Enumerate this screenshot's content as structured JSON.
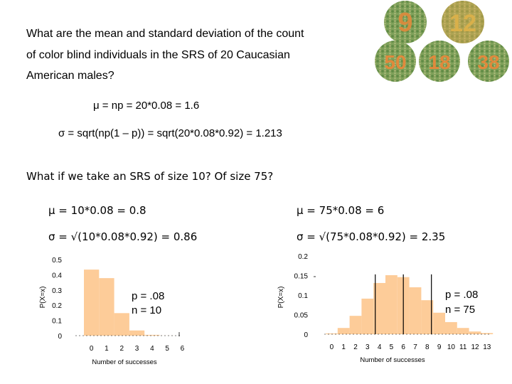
{
  "question": {
    "line1": "What are the mean and standard deviation of the count",
    "line2": "of color blind individuals in the SRS of 20 Caucasian",
    "line3": "American males?"
  },
  "formulas": {
    "mean": "μ = np = 20*0.08 = 1.6",
    "sd": "σ = sqrt(np(1 – p)) = sqrt(20*0.08*0.92) = 1.213"
  },
  "followup": "What if we take an SRS of size 10? Of size 75?",
  "n10": {
    "mean": "μ = 10*0.08 = 0.8",
    "sd": "σ = √(10*0.08*0.92) = 0.86"
  },
  "n75": {
    "mean": "μ = 75*0.08 = 6",
    "sd": "σ = √(75*0.08*0.92) = 2.35"
  },
  "plate_labels": [
    "9",
    "12",
    "50",
    "18",
    "38"
  ],
  "colors": {
    "bar": "#fdcc99",
    "plate_green": "#7fa05a",
    "plate_orange": "#e0893c"
  },
  "chart_data": [
    {
      "type": "bar",
      "xlabel": "Number of successes",
      "ylabel": "P(X=x)",
      "ylim": [
        0,
        0.5
      ],
      "yticks": [
        "0",
        "0.1",
        "0.2",
        "0.3",
        "0.4",
        "0.5"
      ],
      "categories": [
        "0",
        "1",
        "2",
        "3",
        "4",
        "5",
        "6"
      ],
      "values": [
        0.434,
        0.378,
        0.148,
        0.034,
        0.005,
        0.0005,
        0.0
      ],
      "annotation_p": "p = .08",
      "annotation_n": "n = 10"
    },
    {
      "type": "bar",
      "xlabel": "Number of successes",
      "ylabel": "P(X=x)",
      "ylim": [
        0,
        0.2
      ],
      "yticks": [
        "0",
        "0.05",
        "0.1",
        "0.15",
        "0.2"
      ],
      "categories": [
        "0",
        "1",
        "2",
        "3",
        "4",
        "5",
        "6",
        "7",
        "8",
        "9",
        "10",
        "11",
        "12",
        "13"
      ],
      "values": [
        0.002,
        0.016,
        0.047,
        0.091,
        0.131,
        0.151,
        0.146,
        0.12,
        0.087,
        0.055,
        0.031,
        0.016,
        0.007,
        0.003
      ],
      "marker_lines": [
        3.65,
        6,
        8.35
      ],
      "annotation_p": "p = .08",
      "annotation_n": "n = 75"
    }
  ]
}
